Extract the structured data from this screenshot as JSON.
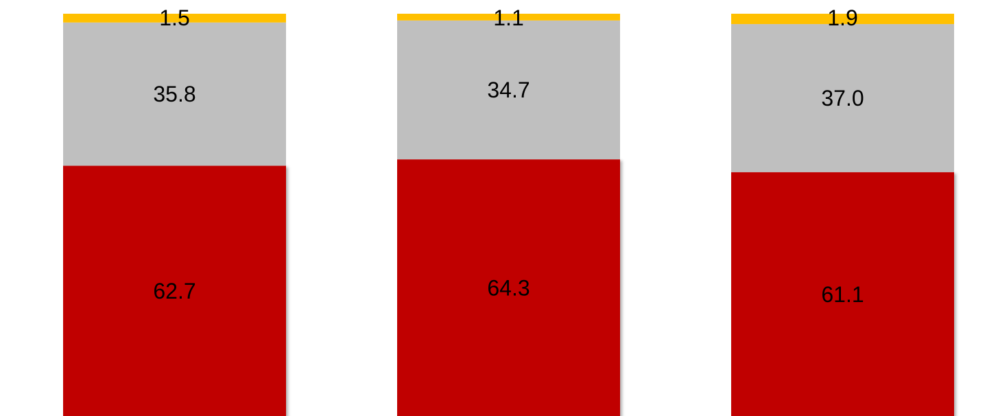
{
  "chart_data": {
    "type": "bar",
    "stacked": true,
    "categories": [
      "",
      "",
      ""
    ],
    "series": [
      {
        "values": [
          62.7,
          64.3,
          61.1
        ],
        "color": "#C00000"
      },
      {
        "values": [
          35.8,
          34.7,
          37.0
        ],
        "color": "#BFBFBF"
      },
      {
        "values": [
          1.5,
          1.1,
          1.9
        ],
        "color": "#FFC000"
      }
    ],
    "value_labels": [
      [
        "62.7",
        "64.3",
        "61.1"
      ],
      [
        "35.8",
        "34.7",
        "37.0"
      ],
      [
        "1.5",
        "1.1",
        "1.9"
      ]
    ],
    "title": "",
    "xlabel": "",
    "ylabel": "",
    "ylim": [
      0,
      100
    ],
    "grid": false,
    "legend": "none"
  }
}
